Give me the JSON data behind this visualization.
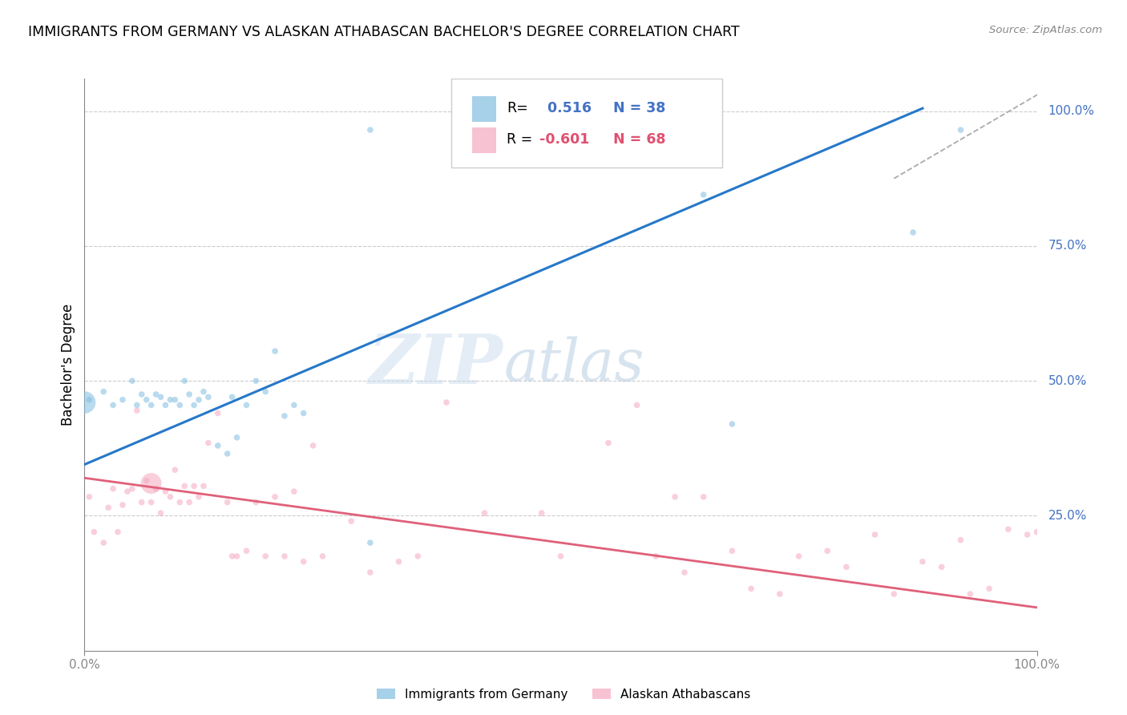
{
  "title": "IMMIGRANTS FROM GERMANY VS ALASKAN ATHABASCAN BACHELOR'S DEGREE CORRELATION CHART",
  "source": "Source: ZipAtlas.com",
  "ylabel": "Bachelor's Degree",
  "ytick_labels": [
    "100.0%",
    "75.0%",
    "50.0%",
    "25.0%"
  ],
  "ytick_positions": [
    1.0,
    0.75,
    0.5,
    0.25
  ],
  "xlim": [
    0.0,
    1.0
  ],
  "ylim": [
    0.0,
    1.06
  ],
  "color_blue": "#82bde0",
  "color_pink": "#f5a8bf",
  "line_blue": "#2678c8",
  "line_pink": "#e0607a",
  "watermark_zip": "ZIP",
  "watermark_atlas": "atlas",
  "blue_line_x": [
    0.0,
    0.88
  ],
  "blue_line_y": [
    0.345,
    1.005
  ],
  "pink_line_x": [
    0.0,
    1.0
  ],
  "pink_line_y": [
    0.32,
    0.08
  ],
  "dash_line_x": [
    0.85,
    1.01
  ],
  "dash_line_y": [
    0.875,
    1.04
  ],
  "blue_scatter_x": [
    0.005,
    0.02,
    0.03,
    0.04,
    0.05,
    0.055,
    0.06,
    0.065,
    0.07,
    0.075,
    0.08,
    0.085,
    0.09,
    0.095,
    0.1,
    0.105,
    0.11,
    0.115,
    0.12,
    0.125,
    0.13,
    0.14,
    0.15,
    0.155,
    0.16,
    0.17,
    0.18,
    0.19,
    0.2,
    0.21,
    0.22,
    0.23,
    0.3,
    0.65,
    0.68,
    0.87,
    0.92,
    0.3
  ],
  "blue_scatter_y": [
    0.465,
    0.48,
    0.455,
    0.465,
    0.5,
    0.455,
    0.475,
    0.465,
    0.455,
    0.475,
    0.47,
    0.455,
    0.465,
    0.465,
    0.455,
    0.5,
    0.475,
    0.455,
    0.465,
    0.48,
    0.47,
    0.38,
    0.365,
    0.47,
    0.395,
    0.455,
    0.5,
    0.48,
    0.555,
    0.435,
    0.455,
    0.44,
    0.2,
    0.845,
    0.42,
    0.775,
    0.965,
    0.965
  ],
  "blue_scatter_size": [
    30,
    30,
    30,
    30,
    30,
    30,
    30,
    30,
    30,
    30,
    30,
    30,
    30,
    30,
    30,
    30,
    30,
    30,
    30,
    30,
    30,
    30,
    30,
    30,
    30,
    30,
    30,
    30,
    30,
    30,
    30,
    30,
    30,
    30,
    30,
    30,
    30,
    30
  ],
  "blue_large_x": [
    0.0
  ],
  "blue_large_y": [
    0.46
  ],
  "blue_large_size": [
    400
  ],
  "pink_scatter_x": [
    0.005,
    0.01,
    0.02,
    0.025,
    0.03,
    0.035,
    0.04,
    0.045,
    0.05,
    0.055,
    0.06,
    0.065,
    0.07,
    0.075,
    0.08,
    0.085,
    0.09,
    0.095,
    0.1,
    0.105,
    0.11,
    0.115,
    0.12,
    0.125,
    0.13,
    0.14,
    0.15,
    0.155,
    0.16,
    0.17,
    0.18,
    0.19,
    0.2,
    0.21,
    0.22,
    0.23,
    0.24,
    0.25,
    0.28,
    0.3,
    0.33,
    0.35,
    0.38,
    0.42,
    0.48,
    0.5,
    0.55,
    0.58,
    0.6,
    0.63,
    0.65,
    0.68,
    0.7,
    0.73,
    0.75,
    0.78,
    0.8,
    0.83,
    0.85,
    0.88,
    0.9,
    0.92,
    0.93,
    0.95,
    0.97,
    0.99,
    1.0,
    0.62
  ],
  "pink_scatter_y": [
    0.285,
    0.22,
    0.2,
    0.265,
    0.3,
    0.22,
    0.27,
    0.295,
    0.3,
    0.445,
    0.275,
    0.315,
    0.275,
    0.3,
    0.255,
    0.295,
    0.285,
    0.335,
    0.275,
    0.305,
    0.275,
    0.305,
    0.285,
    0.305,
    0.385,
    0.44,
    0.275,
    0.175,
    0.175,
    0.185,
    0.275,
    0.175,
    0.285,
    0.175,
    0.295,
    0.165,
    0.38,
    0.175,
    0.24,
    0.145,
    0.165,
    0.175,
    0.46,
    0.255,
    0.255,
    0.175,
    0.385,
    0.455,
    0.175,
    0.145,
    0.285,
    0.185,
    0.115,
    0.105,
    0.175,
    0.185,
    0.155,
    0.215,
    0.105,
    0.165,
    0.155,
    0.205,
    0.105,
    0.115,
    0.225,
    0.215,
    0.22,
    0.285
  ],
  "pink_scatter_size": [
    30,
    30,
    30,
    30,
    30,
    30,
    30,
    30,
    30,
    30,
    30,
    30,
    30,
    30,
    30,
    30,
    30,
    30,
    30,
    30,
    30,
    30,
    30,
    30,
    30,
    30,
    30,
    30,
    30,
    30,
    30,
    30,
    30,
    30,
    30,
    30,
    30,
    30,
    30,
    30,
    30,
    30,
    30,
    30,
    30,
    30,
    30,
    30,
    30,
    30,
    30,
    30,
    30,
    30,
    30,
    30,
    30,
    30,
    30,
    30,
    30,
    30,
    30,
    30,
    30,
    30,
    30,
    30
  ],
  "pink_large_x": [
    0.07
  ],
  "pink_large_y": [
    0.31
  ],
  "pink_large_size": [
    350
  ]
}
